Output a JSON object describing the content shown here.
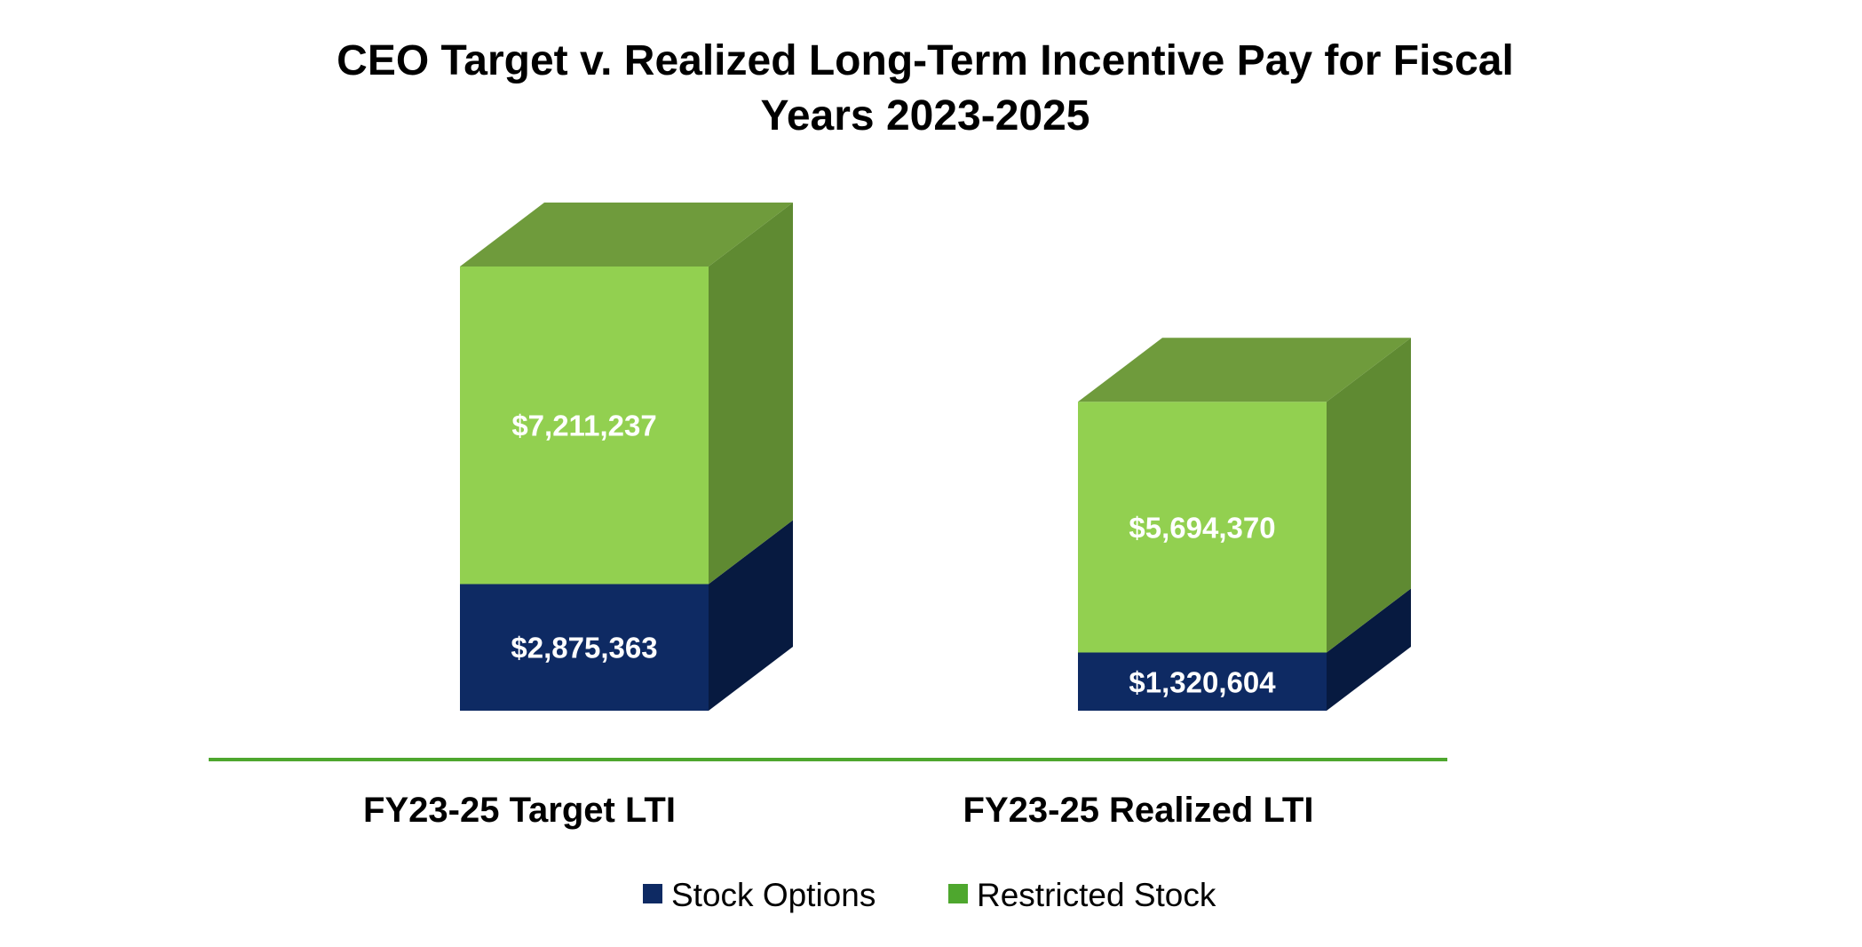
{
  "chart_data": {
    "type": "bar",
    "stacked": true,
    "style": "3d",
    "title_lines": [
      "CEO Target v. Realized Long-Term Incentive Pay for Fiscal",
      "Years 2023-2025"
    ],
    "categories": [
      "FY23-25 Target LTI",
      "FY23-25 Realized LTI"
    ],
    "series": [
      {
        "name": "Stock Options",
        "values": [
          2875363,
          1320604
        ],
        "labels": [
          "$2,875,363",
          "$1,320,604"
        ],
        "colors": {
          "front": "#0e2a63",
          "side": "#071a40",
          "top": "#0a2150",
          "legend": "#0e2a63"
        }
      },
      {
        "name": "Restricted Stock",
        "values": [
          7211237,
          5694370
        ],
        "labels": [
          "$7,211,237",
          "$5,694,370"
        ],
        "colors": {
          "front": "#92d050",
          "side": "#5f8a32",
          "top": "#6f9b3c",
          "legend": "#4ea72e"
        }
      }
    ],
    "xlabel": "",
    "ylabel": "",
    "ylim": [
      0,
      10086600
    ],
    "grid": false,
    "axis_line_color": "#4ea72e",
    "legend_position": "bottom"
  }
}
